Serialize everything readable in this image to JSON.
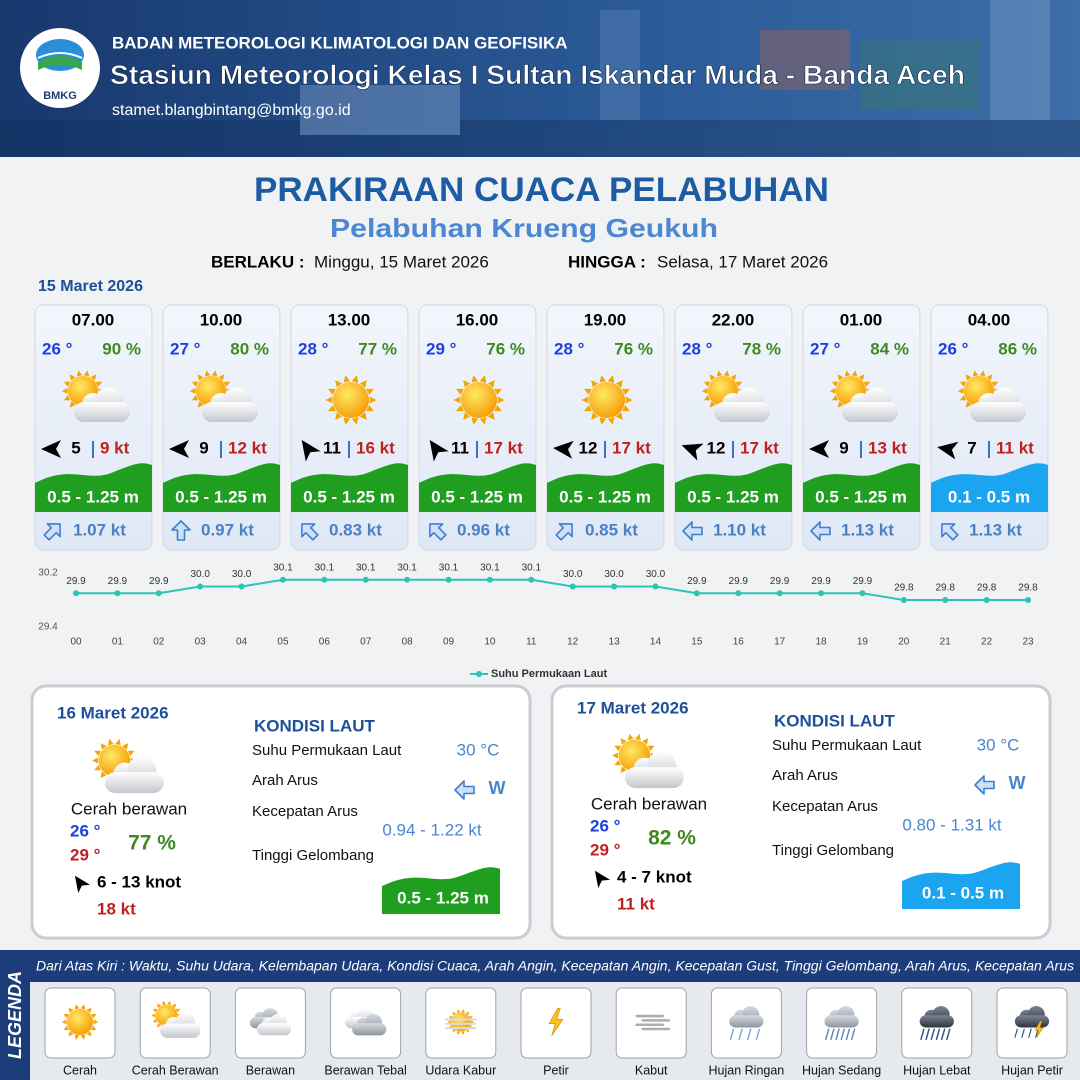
{
  "header": {
    "logo": "BMKG",
    "agency": "BADAN METEOROLOGI KLIMATOLOGI DAN GEOFISIKA",
    "station": "Stasiun Meteorologi Kelas I Sultan Iskandar Muda - Banda Aceh",
    "email": "stamet.blangbintang@bmkg.go.id"
  },
  "title": "PRAKIRAAN CUACA PELABUHAN",
  "subtitle": "Pelabuhan Krueng Geukuh",
  "validity": {
    "from_label": "BERLAKU :",
    "from": "Minggu, 15 Maret 2026",
    "to_label": "HINGGA :",
    "to": "Selasa, 17 Maret 2026"
  },
  "day1": {
    "date": "15 Maret 2026",
    "forecasts": [
      {
        "time": "07.00",
        "temp": "26 °",
        "humidity": "90 %",
        "wind": "5",
        "gust": "9 kt",
        "wave": "0.5 - 1.25 m",
        "current": "1.07 kt"
      },
      {
        "time": "10.00",
        "temp": "27 °",
        "humidity": "80 %",
        "wind": "9",
        "gust": "12 kt",
        "wave": "0.5 - 1.25 m",
        "current": "0.97 kt"
      },
      {
        "time": "13.00",
        "temp": "28 °",
        "humidity": "77 %",
        "wind": "11",
        "gust": "16 kt",
        "wave": "0.5 - 1.25 m",
        "current": "0.83 kt"
      },
      {
        "time": "16.00",
        "temp": "29 °",
        "humidity": "76 %",
        "wind": "11",
        "gust": "17 kt",
        "wave": "0.5 - 1.25 m",
        "current": "0.96 kt"
      },
      {
        "time": "19.00",
        "temp": "28 °",
        "humidity": "76 %",
        "wind": "12",
        "gust": "17 kt",
        "wave": "0.5 - 1.25 m",
        "current": "0.85 kt"
      },
      {
        "time": "22.00",
        "temp": "28 °",
        "humidity": "78 %",
        "wind": "12",
        "gust": "17 kt",
        "wave": "0.5 - 1.25 m",
        "current": "1.10 kt"
      },
      {
        "time": "01.00",
        "temp": "27 °",
        "humidity": "84 %",
        "wind": "9",
        "gust": "13 kt",
        "wave": "0.5 - 1.25 m",
        "current": "1.13 kt"
      },
      {
        "time": "04.00",
        "temp": "26 °",
        "humidity": "86 %",
        "wind": "7",
        "gust": "11 kt",
        "wave": "0.1 - 0.5 m",
        "current": "1.13 kt"
      }
    ]
  },
  "chart_data": {
    "type": "line",
    "categories": [
      "00",
      "01",
      "02",
      "03",
      "04",
      "05",
      "06",
      "07",
      "08",
      "09",
      "10",
      "11",
      "12",
      "13",
      "14",
      "15",
      "16",
      "17",
      "18",
      "19",
      "20",
      "21",
      "22",
      "23"
    ],
    "series": [
      {
        "name": "Suhu Permukaan Laut",
        "color": "#2cc4b5",
        "values": [
          29.9,
          29.9,
          29.9,
          30.0,
          30.0,
          30.1,
          30.1,
          30.1,
          30.1,
          30.1,
          30.1,
          30.1,
          30.0,
          30.0,
          30.0,
          29.9,
          29.9,
          29.9,
          29.9,
          29.9,
          29.8,
          29.8,
          29.8,
          29.8
        ],
        "value_labels": [
          "29.9",
          "29.9",
          "29.9",
          "30.0",
          "30.0",
          "30.1",
          "30.1",
          "30.1",
          "30.1",
          "30.1",
          "30.1",
          "30.1",
          "30.0",
          "30.0",
          "30.0",
          "29.9",
          "29.9",
          "29.9",
          "29.9",
          "29.9",
          "29.8",
          "29.8",
          "29.8",
          "29.8"
        ]
      }
    ],
    "ylim": [
      29.4,
      30.2
    ],
    "yticks": [
      29.4,
      30.2
    ],
    "grid": false,
    "legend": "bottom"
  },
  "days": [
    {
      "date": "16 Maret 2026",
      "condition": "Cerah berawan",
      "temp_min": "26 °",
      "temp_max": "29 °",
      "humidity": "77 %",
      "wind": "6  - 13 knot",
      "gust": "18 kt",
      "sea": {
        "title": "KONDISI LAUT",
        "labels": [
          "Suhu Permukaan Laut",
          "Arah Arus",
          "Kecepatan Arus",
          "Tinggi Gelombang"
        ],
        "sst": "30 °C",
        "current_dir": "W",
        "current_speed": "0.94  - 1.22 kt",
        "wave": "0.5 - 1.25 m"
      }
    },
    {
      "date": "17 Maret 2026",
      "condition": "Cerah berawan",
      "temp_min": "26 °",
      "temp_max": "29 °",
      "humidity": "82 %",
      "wind": "4  - 7 knot",
      "gust": "11 kt",
      "sea": {
        "title": "KONDISI LAUT",
        "labels": [
          "Suhu Permukaan Laut",
          "Arah Arus",
          "Kecepatan Arus",
          "Tinggi Gelombang"
        ],
        "sst": "30 °C",
        "current_dir": "W",
        "current_speed": "0.80 - 1.31 kt",
        "wave": "0.1 - 0.5 m"
      }
    }
  ],
  "legend": {
    "title": "LEGENDA",
    "description": "Dari Atas Kiri : Waktu, Suhu Udara, Kelembapan Udara, Kondisi Cuaca, Arah Angin, Kecepatan Angin, Kecepatan Gust, Tinggi Gelombang, Arah Arus, Kecepatan Arus",
    "items": [
      "Cerah",
      "Cerah Berawan",
      "Berawan",
      "Berawan Tebal",
      "Udara Kabur",
      "Petir",
      "Kabut",
      "Hujan Ringan",
      "Hujan Sedang",
      "Hujan Lebat",
      "Hujan Petir"
    ]
  }
}
